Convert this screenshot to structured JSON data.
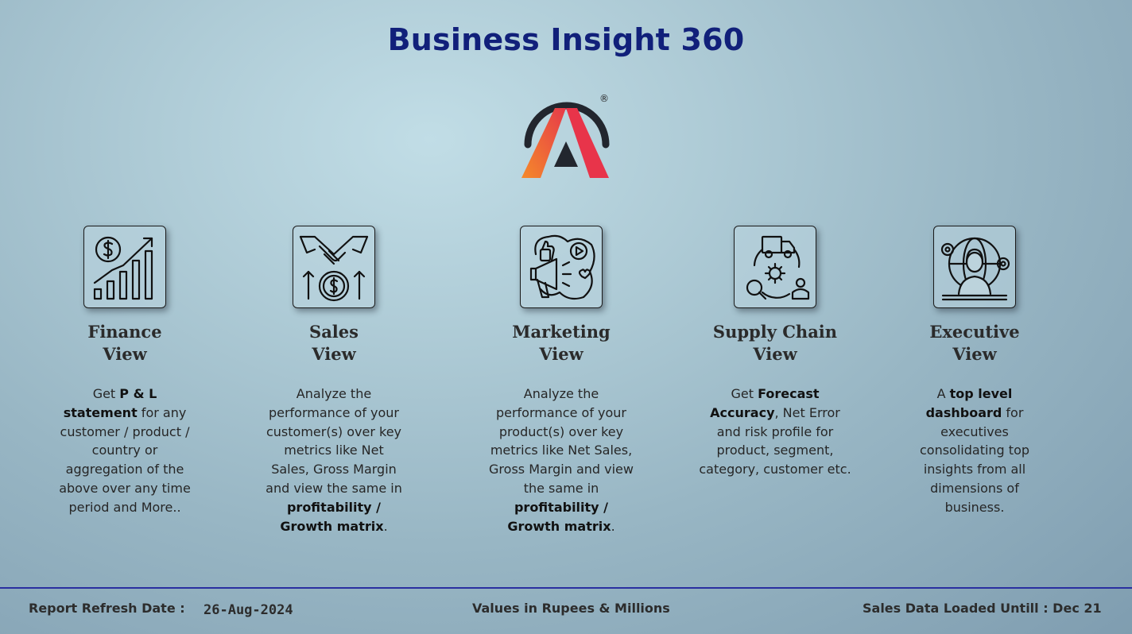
{
  "header": {
    "title": "Business Insight 360"
  },
  "logo": {
    "name": "atliq-logo-icon",
    "registered_mark": "®"
  },
  "cards": [
    {
      "icon": "finance-chart-dollar-icon",
      "title_line1": "Finance",
      "title_line2": "View",
      "desc": [
        {
          "t": "Get  ",
          "b": false
        },
        {
          "t": "P & L statement",
          "b": true
        },
        {
          "t": " for any customer / product / country or aggregation of the above over any time period and More..",
          "b": false
        }
      ]
    },
    {
      "icon": "handshake-dollar-icon",
      "title_line1": "Sales",
      "title_line2": "View",
      "desc": [
        {
          "t": "Analyze the performance of your customer(s) over key metrics like Net Sales, Gross Margin and view the same in ",
          "b": false
        },
        {
          "t": "profitability / Growth matrix",
          "b": true
        },
        {
          "t": ".",
          "b": false
        }
      ]
    },
    {
      "icon": "marketing-megaphone-icon",
      "title_line1": "Marketing",
      "title_line2": "View",
      "desc": [
        {
          "t": "Analyze the performance of your product(s) over key metrics like Net Sales, Gross Margin and view the same in ",
          "b": false
        },
        {
          "t": "profitability / Growth matrix",
          "b": true
        },
        {
          "t": ".",
          "b": false
        }
      ]
    },
    {
      "icon": "supply-chain-truck-gear-icon",
      "title_line1": "Supply Chain",
      "title_line2": "View",
      "desc": [
        {
          "t": "Get ",
          "b": false
        },
        {
          "t": "Forecast Accuracy",
          "b": true
        },
        {
          "t": ", Net Error and risk profile for product, segment, category, customer etc.",
          "b": false
        }
      ]
    },
    {
      "icon": "executive-globe-person-icon",
      "title_line1": "Executive",
      "title_line2": "View",
      "desc": [
        {
          "t": "A ",
          "b": false
        },
        {
          "t": "top level dashboard",
          "b": true
        },
        {
          "t": " for executives consolidating top insights from all dimensions of business.",
          "b": false
        }
      ]
    }
  ],
  "footer": {
    "refresh_label": "Report Refresh Date :",
    "refresh_value": "26-Aug-2024",
    "values_note": "Values in Rupees & Millions",
    "loaded_note": "Sales Data Loaded Untill : Dec 21"
  },
  "colors": {
    "title": "#11207a",
    "footer_line": "#2a2fa0",
    "logo_orange": "#f36b2a",
    "logo_red": "#e8344a"
  }
}
